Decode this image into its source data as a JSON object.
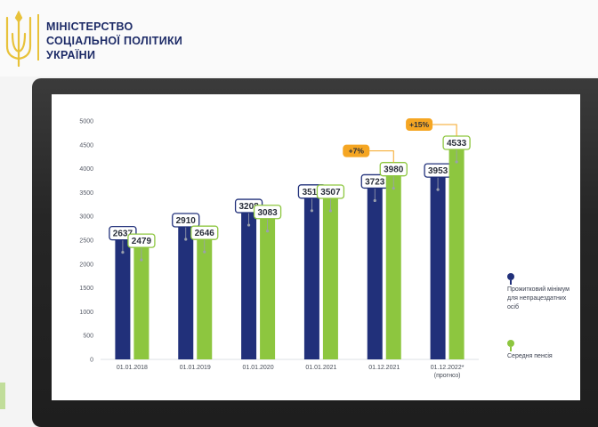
{
  "ministry": {
    "line1": "МІНІСТЕРСТВО",
    "line2": "СОЦІАЛЬНОЇ ПОЛІТИКИ",
    "line3": "УКРАЇНИ"
  },
  "colors": {
    "blue": "#21307a",
    "green": "#8dc63f",
    "orange": "#f5a623",
    "brand": "#1d2b67"
  },
  "chart_data": {
    "type": "bar",
    "title": "",
    "xlabel": "",
    "ylabel": "",
    "ylim": [
      0,
      5000
    ],
    "yticks": [
      "0",
      "500",
      "1000",
      "1500",
      "2000",
      "2500",
      "3000",
      "3500",
      "4000",
      "4500",
      "5000"
    ],
    "grid": false,
    "legend_position": "right",
    "categories": [
      "01.01.2018",
      "01.01.2019",
      "01.01.2020",
      "01.01.2021",
      "01.12.2021",
      "01.12.2022*"
    ],
    "category_notes": [
      "",
      "",
      "",
      "",
      "",
      "(прогноз)"
    ],
    "series": [
      {
        "name": "Прожитковий мінімум для непрацездатних осіб",
        "values": [
          2637,
          2910,
          3208,
          3511,
          3723,
          3953
        ]
      },
      {
        "name": "Середня пенсія",
        "values": [
          2479,
          2646,
          3083,
          3507,
          3980,
          4533
        ]
      }
    ],
    "annotations": [
      {
        "text": "+7%",
        "category": "01.12.2021"
      },
      {
        "text": "+15%",
        "category": "01.12.2022*"
      }
    ]
  }
}
